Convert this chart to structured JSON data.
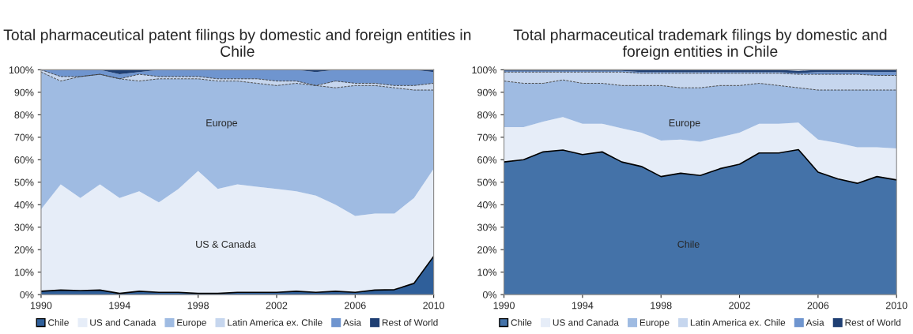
{
  "chart_data": [
    {
      "type": "area",
      "stacked": true,
      "title": "Total pharmaceutical patent filings by domestic and foreign entities in Chile",
      "x": [
        1990,
        1991,
        1992,
        1993,
        1994,
        1995,
        1996,
        1997,
        1998,
        1999,
        2000,
        2001,
        2002,
        2003,
        2004,
        2005,
        2006,
        2007,
        2008,
        2009,
        2010
      ],
      "series": [
        {
          "name": "Chile",
          "color": "#2f5f9a",
          "values": [
            1.5,
            2,
            1.8,
            2,
            0.5,
            1.5,
            1,
            1,
            0.5,
            0.5,
            1,
            1,
            1,
            1.5,
            1,
            1.5,
            1,
            2,
            2.2,
            5,
            17
          ]
        },
        {
          "name": "US and Canada",
          "color": "#e6edf8",
          "values": [
            36.5,
            47,
            41.2,
            47,
            42.5,
            44.5,
            40,
            46,
            54.5,
            46.5,
            48,
            47,
            46,
            44.5,
            43,
            38.5,
            34,
            34,
            33.8,
            38,
            39
          ]
        },
        {
          "name": "Europe",
          "color": "#9fbbe2",
          "values": [
            61,
            46,
            54,
            49,
            53,
            49,
            55,
            49,
            41,
            48,
            46,
            46,
            46,
            48,
            49,
            52,
            58,
            57,
            56,
            48,
            35
          ]
        },
        {
          "name": "Latin America ex. Chile",
          "color": "#c6d6ee",
          "values": [
            1,
            2,
            0,
            0,
            0,
            3,
            1,
            1,
            1,
            1,
            1,
            2,
            2,
            1,
            0,
            3,
            1,
            1,
            1,
            2,
            3
          ]
        },
        {
          "name": "Asia",
          "color": "#6f95cf",
          "values": [
            0,
            3,
            3,
            2,
            2,
            1,
            3,
            3,
            3,
            4,
            4,
            4,
            5,
            5,
            6,
            5,
            6,
            6,
            7,
            7,
            5
          ]
        },
        {
          "name": "Rest of World",
          "color": "#1f3f73",
          "values": [
            0,
            0,
            0,
            0,
            2,
            1,
            0,
            0,
            0,
            0,
            0,
            0,
            0,
            0,
            1,
            0,
            0,
            0,
            0,
            0,
            1
          ]
        }
      ],
      "xlim": [
        1990,
        2010
      ],
      "xticks": [
        1990,
        1994,
        1998,
        2002,
        2006,
        2010
      ],
      "ylim": [
        0,
        100
      ],
      "yticks": [
        {
          "value": 0,
          "label": "0%"
        },
        {
          "value": 10,
          "label": "10%"
        },
        {
          "value": 20,
          "label": "20%"
        },
        {
          "value": 30,
          "label": "30%"
        },
        {
          "value": 40,
          "label": "40%"
        },
        {
          "value": 50,
          "label": "50%"
        },
        {
          "value": 60,
          "label": "60%"
        },
        {
          "value": 70,
          "label": "70%"
        },
        {
          "value": 80,
          "label": "80%"
        },
        {
          "value": 90,
          "label": "90%"
        },
        {
          "value": 100,
          "label": "100%"
        }
      ],
      "annotations": [
        "Europe",
        "US & Canada"
      ],
      "legend": "bottom",
      "grid": false
    },
    {
      "type": "area",
      "stacked": true,
      "title": "Total pharmaceutical trademark filings by domestic and foreign entities in Chile",
      "x": [
        1990,
        1991,
        1992,
        1993,
        1994,
        1995,
        1996,
        1997,
        1998,
        1999,
        2000,
        2001,
        2002,
        2003,
        2004,
        2005,
        2006,
        2007,
        2008,
        2009,
        2010
      ],
      "series": [
        {
          "name": "Chile",
          "color": "#4472a8",
          "values": [
            59,
            60,
            63.5,
            64.3,
            62.3,
            63.5,
            59,
            57,
            52.5,
            54,
            53,
            56,
            58,
            63,
            63,
            64.5,
            54.5,
            51.5,
            49.5,
            52.5,
            51
          ]
        },
        {
          "name": "US and Canada",
          "color": "#e6edf8",
          "values": [
            15.5,
            14.5,
            13.5,
            14.7,
            13.7,
            12.5,
            15,
            15,
            16,
            15,
            15,
            14,
            14,
            13,
            13,
            12,
            14.5,
            16,
            16,
            13,
            14
          ]
        },
        {
          "name": "Europe",
          "color": "#9fbbe2",
          "values": [
            20.5,
            19.5,
            17,
            16.5,
            18,
            18,
            19,
            21,
            24.5,
            23,
            24,
            23,
            21,
            18,
            17,
            15.5,
            22,
            23.5,
            25.5,
            25.5,
            26
          ]
        },
        {
          "name": "Latin America ex. Chile",
          "color": "#c6d6ee",
          "values": [
            4,
            5,
            5,
            3.5,
            5,
            5,
            6,
            5.5,
            5.5,
            6.5,
            6.5,
            5.5,
            5.5,
            4.5,
            5.5,
            6,
            7,
            7,
            7,
            6.5,
            6.5
          ]
        },
        {
          "name": "Asia",
          "color": "#6f95cf",
          "values": [
            0.5,
            0.5,
            0.5,
            0.5,
            0.5,
            0.5,
            0.5,
            0.5,
            0.5,
            0.5,
            0.5,
            0.5,
            0.5,
            0.5,
            0.5,
            0.5,
            1,
            1,
            1,
            1.5,
            1.5
          ]
        },
        {
          "name": "Rest of World",
          "color": "#1f3f73",
          "values": [
            0.5,
            0.5,
            0.5,
            0.5,
            0.5,
            0.5,
            0.5,
            1,
            1,
            1,
            1,
            1,
            1,
            1,
            1,
            1,
            1,
            1,
            1,
            1,
            1
          ]
        }
      ],
      "xlim": [
        1990,
        2010
      ],
      "xticks": [
        1990,
        1994,
        1998,
        2002,
        2006,
        2010
      ],
      "ylim": [
        0,
        100
      ],
      "yticks": [
        {
          "value": 0,
          "label": "0%"
        },
        {
          "value": 10,
          "label": "10%"
        },
        {
          "value": 20,
          "label": "20%"
        },
        {
          "value": 30,
          "label": "30%"
        },
        {
          "value": 40,
          "label": "40%"
        },
        {
          "value": 50,
          "label": "50%"
        },
        {
          "value": 60,
          "label": "60%"
        },
        {
          "value": 70,
          "label": "70%"
        },
        {
          "value": 80,
          "label": "80%"
        },
        {
          "value": 90,
          "label": "90%"
        },
        {
          "value": 100,
          "label": "100%"
        }
      ],
      "annotations": [
        "Europe",
        "Chile"
      ],
      "legend": "bottom",
      "grid": false
    }
  ]
}
